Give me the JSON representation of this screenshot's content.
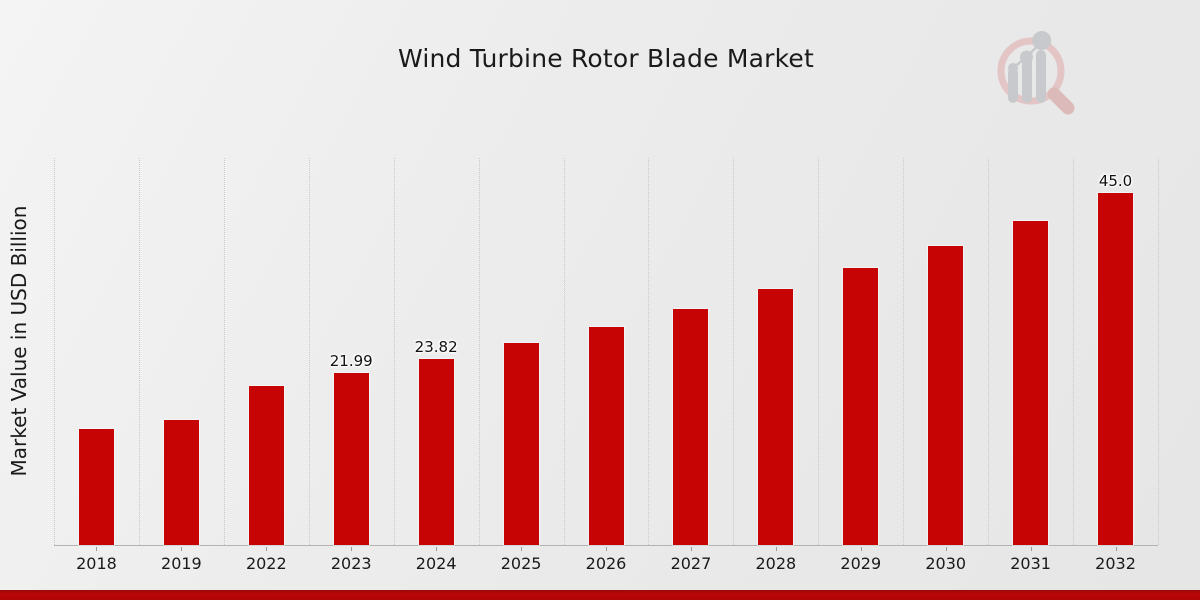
{
  "page": {
    "background_top_color": "#f4f4f4",
    "background_bottom_color": "#e6e6e6"
  },
  "watermark": {
    "icon": "market-research-future-logo",
    "ring_color": "#e3c5c5",
    "handle_color": "#ddbaba",
    "bars_color": "#c7c9cc"
  },
  "footer": {
    "accent_bar_color": "#b30505"
  },
  "chart_data": {
    "type": "bar",
    "title": "Wind Turbine Rotor Blade Market",
    "xlabel": "",
    "ylabel": "Market Value in USD Billion",
    "categories": [
      "2018",
      "2019",
      "2022",
      "2023",
      "2024",
      "2025",
      "2026",
      "2027",
      "2028",
      "2029",
      "2030",
      "2031",
      "2032"
    ],
    "values": [
      14.86,
      15.95,
      20.37,
      21.99,
      23.82,
      25.81,
      27.86,
      30.17,
      32.73,
      35.42,
      38.24,
      41.44,
      45.0
    ],
    "data_labels": [
      {
        "category": "2023",
        "text": "21.99"
      },
      {
        "category": "2024",
        "text": "23.82"
      },
      {
        "category": "2032",
        "text": "45.0"
      }
    ],
    "bar_color": "#c70404",
    "ylim": [
      0,
      49.6
    ],
    "grid": "vertical-dotted",
    "gridline_color": "#c9c9c9",
    "legend": "none",
    "tick_label_color": "#1a1a1a"
  }
}
